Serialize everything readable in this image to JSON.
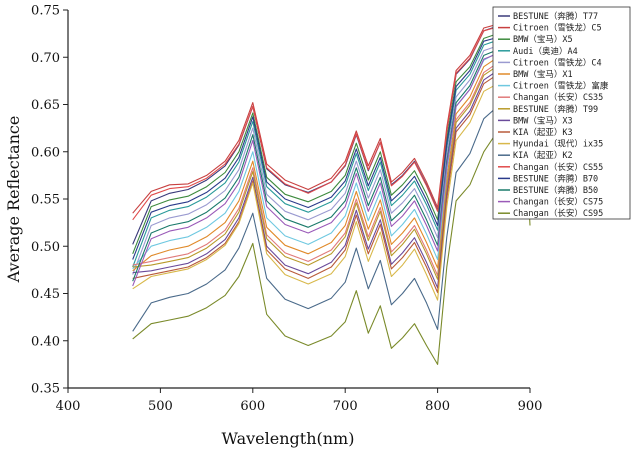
{
  "chart_data": {
    "type": "line",
    "xlabel": "Wavelength(nm)",
    "ylabel": "Average Reflectance",
    "xlim": [
      400,
      900
    ],
    "ylim": [
      0.35,
      0.75
    ],
    "xticks": [
      400,
      500,
      600,
      700,
      800,
      900
    ],
    "yticks": [
      0.35,
      0.4,
      0.45,
      0.5,
      0.55,
      0.6,
      0.65,
      0.7,
      0.75
    ],
    "legend_position": "top-right",
    "x": [
      470,
      490,
      510,
      530,
      550,
      570,
      585,
      600,
      615,
      635,
      660,
      685,
      700,
      712,
      725,
      738,
      750,
      762,
      775,
      788,
      800,
      810,
      820,
      835,
      850,
      865,
      880,
      895,
      900
    ],
    "series": [
      {
        "name": "BESTUNE（奔腾）T77",
        "color": "#3a3a7a",
        "values": [
          0.502,
          0.548,
          0.556,
          0.56,
          0.57,
          0.585,
          0.607,
          0.648,
          0.582,
          0.565,
          0.557,
          0.568,
          0.585,
          0.618,
          0.58,
          0.61,
          0.565,
          0.575,
          0.59,
          0.565,
          0.538,
          0.622,
          0.682,
          0.698,
          0.728,
          0.733,
          0.732,
          0.727,
          0.685
        ]
      },
      {
        "name": "Citroen（雪铁龙）C5",
        "color": "#c84040",
        "values": [
          0.535,
          0.558,
          0.565,
          0.566,
          0.575,
          0.59,
          0.612,
          0.652,
          0.587,
          0.57,
          0.56,
          0.572,
          0.59,
          0.622,
          0.585,
          0.614,
          0.568,
          0.578,
          0.593,
          0.568,
          0.541,
          0.626,
          0.686,
          0.702,
          0.731,
          0.735,
          0.734,
          0.73,
          0.69
        ]
      },
      {
        "name": "BMW（宝马）X5",
        "color": "#3d8a3d",
        "values": [
          0.492,
          0.542,
          0.549,
          0.553,
          0.563,
          0.578,
          0.6,
          0.641,
          0.573,
          0.555,
          0.547,
          0.558,
          0.575,
          0.609,
          0.57,
          0.6,
          0.554,
          0.565,
          0.58,
          0.555,
          0.528,
          0.614,
          0.674,
          0.69,
          0.72,
          0.725,
          0.724,
          0.72,
          0.68
        ]
      },
      {
        "name": "Audi（奥迪）A4",
        "color": "#2a9a9a",
        "values": [
          0.478,
          0.53,
          0.538,
          0.542,
          0.552,
          0.567,
          0.589,
          0.632,
          0.563,
          0.545,
          0.536,
          0.547,
          0.564,
          0.598,
          0.559,
          0.589,
          0.543,
          0.554,
          0.569,
          0.544,
          0.517,
          0.604,
          0.665,
          0.682,
          0.713,
          0.718,
          0.718,
          0.714,
          0.672
        ]
      },
      {
        "name": "Citroen（雪铁龙）C4",
        "color": "#9a9ad0",
        "values": [
          0.47,
          0.522,
          0.53,
          0.534,
          0.544,
          0.559,
          0.581,
          0.625,
          0.555,
          0.537,
          0.528,
          0.539,
          0.556,
          0.59,
          0.551,
          0.581,
          0.535,
          0.546,
          0.561,
          0.536,
          0.509,
          0.597,
          0.658,
          0.676,
          0.707,
          0.712,
          0.712,
          0.708,
          0.666
        ]
      },
      {
        "name": "BMW（宝马）X1",
        "color": "#e08a2a",
        "values": [
          0.474,
          0.49,
          0.496,
          0.5,
          0.51,
          0.525,
          0.548,
          0.59,
          0.52,
          0.501,
          0.492,
          0.504,
          0.522,
          0.558,
          0.518,
          0.549,
          0.502,
          0.514,
          0.53,
          0.504,
          0.477,
          0.572,
          0.64,
          0.658,
          0.69,
          0.7,
          0.702,
          0.699,
          0.657
        ]
      },
      {
        "name": "Citroen（雪铁龙）富康",
        "color": "#6ec8e0",
        "values": [
          0.476,
          0.5,
          0.506,
          0.51,
          0.52,
          0.535,
          0.558,
          0.6,
          0.53,
          0.511,
          0.502,
          0.514,
          0.532,
          0.567,
          0.527,
          0.558,
          0.511,
          0.523,
          0.539,
          0.513,
          0.486,
          0.58,
          0.648,
          0.666,
          0.697,
          0.705,
          0.706,
          0.703,
          0.661
        ]
      },
      {
        "name": "Changan（长安）CS35",
        "color": "#e07a7a",
        "values": [
          0.48,
          0.484,
          0.488,
          0.492,
          0.502,
          0.517,
          0.54,
          0.583,
          0.512,
          0.493,
          0.484,
          0.496,
          0.514,
          0.55,
          0.51,
          0.541,
          0.494,
          0.506,
          0.522,
          0.496,
          0.469,
          0.565,
          0.634,
          0.652,
          0.684,
          0.694,
          0.696,
          0.693,
          0.651
        ]
      },
      {
        "name": "BESTUNE（奔腾）T99",
        "color": "#b89a2a",
        "values": [
          0.478,
          0.48,
          0.484,
          0.488,
          0.498,
          0.513,
          0.536,
          0.579,
          0.508,
          0.489,
          0.48,
          0.492,
          0.51,
          0.546,
          0.506,
          0.537,
          0.49,
          0.502,
          0.518,
          0.492,
          0.465,
          0.562,
          0.631,
          0.649,
          0.681,
          0.691,
          0.693,
          0.69,
          0.648
        ]
      },
      {
        "name": "BMW（宝马）X3",
        "color": "#6a4a9a",
        "values": [
          0.472,
          0.474,
          0.478,
          0.482,
          0.492,
          0.507,
          0.53,
          0.573,
          0.5,
          0.48,
          0.471,
          0.483,
          0.501,
          0.538,
          0.497,
          0.528,
          0.481,
          0.493,
          0.509,
          0.483,
          0.456,
          0.555,
          0.625,
          0.643,
          0.676,
          0.686,
          0.688,
          0.685,
          0.643
        ]
      },
      {
        "name": "KIA（起亚）K3",
        "color": "#b85a3a",
        "values": [
          0.466,
          0.47,
          0.474,
          0.478,
          0.488,
          0.503,
          0.526,
          0.569,
          0.496,
          0.476,
          0.466,
          0.478,
          0.496,
          0.533,
          0.492,
          0.523,
          0.476,
          0.488,
          0.504,
          0.478,
          0.451,
          0.55,
          0.621,
          0.639,
          0.672,
          0.682,
          0.684,
          0.681,
          0.639
        ]
      },
      {
        "name": "Hyundai（现代）ix35",
        "color": "#d8b84a",
        "values": [
          0.455,
          0.468,
          0.472,
          0.476,
          0.486,
          0.501,
          0.524,
          0.567,
          0.492,
          0.47,
          0.46,
          0.471,
          0.489,
          0.526,
          0.484,
          0.515,
          0.468,
          0.48,
          0.497,
          0.47,
          0.443,
          0.542,
          0.612,
          0.631,
          0.664,
          0.672,
          0.674,
          0.671,
          0.63
        ]
      },
      {
        "name": "KIA（起亚）K2",
        "color": "#4a6a8a",
        "values": [
          0.41,
          0.44,
          0.446,
          0.45,
          0.46,
          0.475,
          0.498,
          0.535,
          0.466,
          0.444,
          0.434,
          0.445,
          0.462,
          0.498,
          0.455,
          0.485,
          0.438,
          0.45,
          0.466,
          0.44,
          0.412,
          0.51,
          0.578,
          0.598,
          0.635,
          0.648,
          0.652,
          0.65,
          0.61
        ]
      },
      {
        "name": "Changan（长安）CS55",
        "color": "#e04a4a",
        "values": [
          0.528,
          0.554,
          0.561,
          0.563,
          0.572,
          0.587,
          0.608,
          0.648,
          0.583,
          0.566,
          0.556,
          0.568,
          0.586,
          0.619,
          0.581,
          0.61,
          0.564,
          0.574,
          0.589,
          0.564,
          0.537,
          0.622,
          0.683,
          0.699,
          0.728,
          0.732,
          0.731,
          0.727,
          0.687
        ]
      },
      {
        "name": "BESTUNE（奔腾）B70",
        "color": "#2a3a8a",
        "values": [
          0.486,
          0.536,
          0.543,
          0.547,
          0.557,
          0.572,
          0.594,
          0.637,
          0.568,
          0.55,
          0.541,
          0.552,
          0.569,
          0.603,
          0.564,
          0.594,
          0.548,
          0.559,
          0.574,
          0.549,
          0.522,
          0.609,
          0.669,
          0.686,
          0.717,
          0.721,
          0.721,
          0.717,
          0.676
        ]
      },
      {
        "name": "BESTUNE（奔腾）B50",
        "color": "#1a7a6a",
        "values": [
          0.463,
          0.514,
          0.522,
          0.526,
          0.536,
          0.551,
          0.573,
          0.618,
          0.548,
          0.529,
          0.52,
          0.531,
          0.548,
          0.583,
          0.543,
          0.573,
          0.527,
          0.538,
          0.554,
          0.528,
          0.501,
          0.59,
          0.652,
          0.67,
          0.702,
          0.708,
          0.708,
          0.704,
          0.662
        ]
      },
      {
        "name": "Changan（长安）CS75",
        "color": "#9a5ab8",
        "values": [
          0.458,
          0.508,
          0.516,
          0.52,
          0.53,
          0.545,
          0.567,
          0.612,
          0.542,
          0.523,
          0.514,
          0.525,
          0.542,
          0.577,
          0.537,
          0.567,
          0.521,
          0.532,
          0.548,
          0.522,
          0.495,
          0.585,
          0.648,
          0.666,
          0.698,
          0.704,
          0.704,
          0.7,
          0.658
        ]
      },
      {
        "name": "Changan（长安）CS95",
        "color": "#7a8a2a",
        "values": [
          0.402,
          0.418,
          0.422,
          0.426,
          0.435,
          0.448,
          0.468,
          0.503,
          0.428,
          0.405,
          0.395,
          0.405,
          0.42,
          0.453,
          0.408,
          0.437,
          0.392,
          0.403,
          0.418,
          0.395,
          0.375,
          0.478,
          0.548,
          0.565,
          0.6,
          0.622,
          0.628,
          0.62,
          0.522
        ]
      }
    ]
  }
}
